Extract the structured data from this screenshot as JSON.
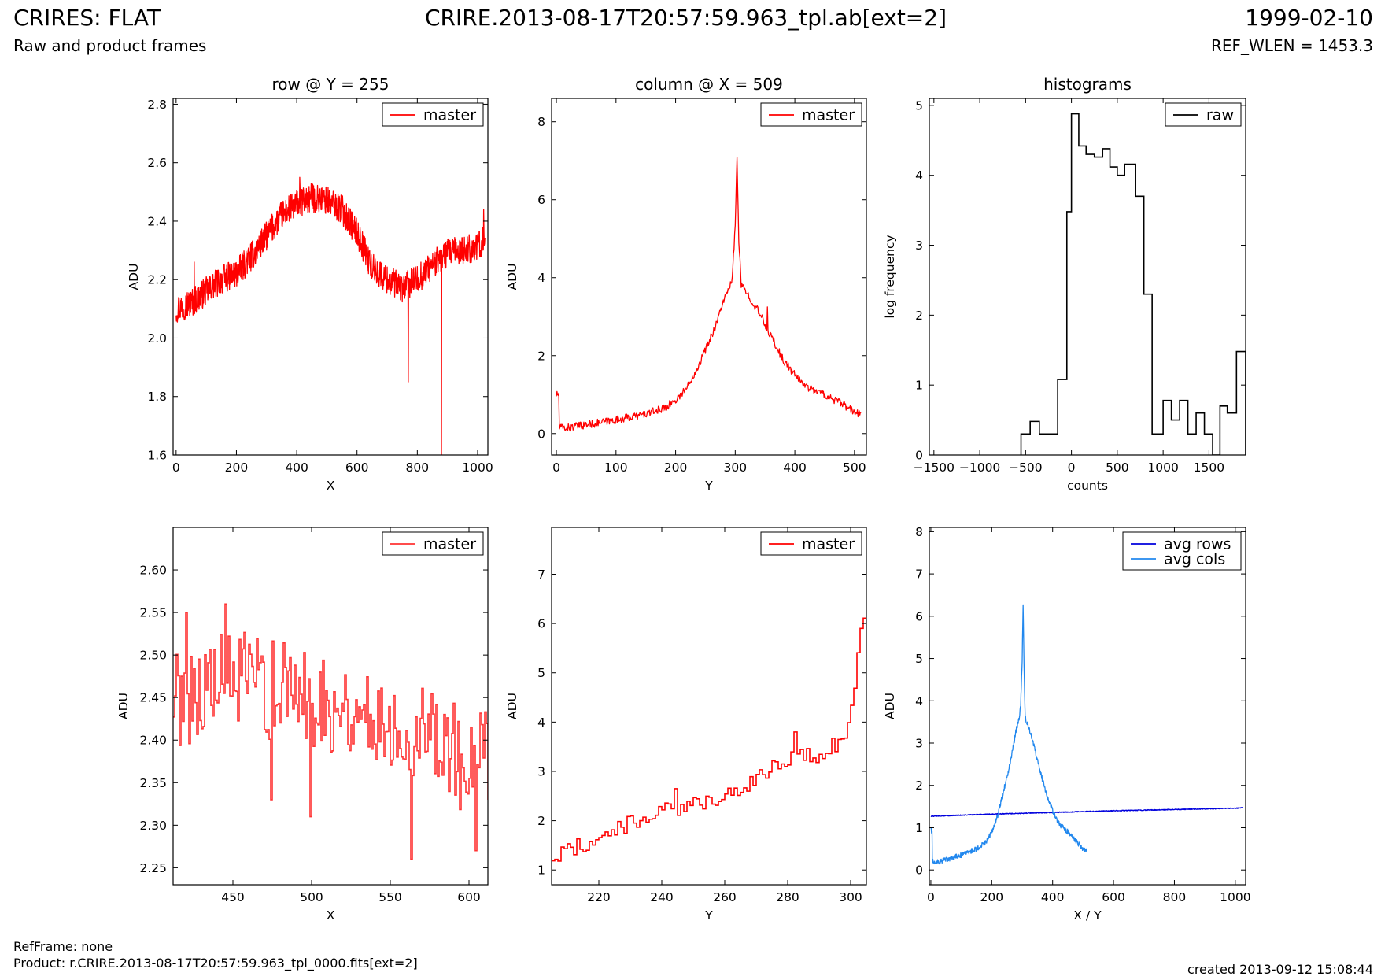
{
  "header": {
    "title_left": "CRIRES: FLAT",
    "subtitle_left": "Raw and product frames",
    "title_center": "CRIRE.2013-08-17T20:57:59.963_tpl.ab[ext=2]",
    "title_right": "1999-02-10",
    "subtitle_right": "REF_WLEN = 1453.3"
  },
  "footer": {
    "ref_frame": "RefFrame: none",
    "product": "Product: r.CRIRE.2013-08-17T20:57:59.963_tpl_0000.fits[ext=2]",
    "created": "created 2013-09-12 15:08:44"
  },
  "chart_data": [
    {
      "type": "line",
      "title": "row @ Y = 255",
      "xlabel": "X",
      "ylabel": "ADU",
      "xlim": [
        -10,
        1034
      ],
      "ylim": [
        1.6,
        2.82
      ],
      "xticks": [
        0,
        200,
        400,
        600,
        800,
        1000
      ],
      "yticks": [
        1.6,
        1.8,
        2.0,
        2.2,
        2.4,
        2.6,
        2.8
      ],
      "ytick_decimals": 1,
      "legend": "top-right",
      "series": [
        {
          "name": "master",
          "color": "#ff0000",
          "drawstyle": "line",
          "x": [
            0,
            50,
            100,
            150,
            200,
            250,
            300,
            350,
            400,
            450,
            500,
            550,
            600,
            650,
            700,
            750,
            800,
            850,
            900,
            950,
            1000,
            1024
          ],
          "values": [
            2.1,
            2.12,
            2.16,
            2.2,
            2.22,
            2.28,
            2.35,
            2.42,
            2.46,
            2.48,
            2.47,
            2.44,
            2.36,
            2.24,
            2.2,
            2.17,
            2.2,
            2.25,
            2.29,
            2.3,
            2.31,
            2.34
          ],
          "noise": 0.05,
          "spikes": [
            [
              60,
              2.26
            ],
            [
              410,
              2.55
            ],
            [
              770,
              1.85
            ],
            [
              880,
              1.58
            ],
            [
              1020,
              2.44
            ]
          ]
        }
      ]
    },
    {
      "type": "line",
      "title": "column @ X = 509",
      "xlabel": "Y",
      "ylabel": "ADU",
      "xlim": [
        -8,
        520
      ],
      "ylim": [
        -0.55,
        8.6
      ],
      "xticks": [
        0,
        100,
        200,
        300,
        400,
        500
      ],
      "yticks": [
        0,
        2,
        4,
        6,
        8
      ],
      "ytick_decimals": 0,
      "legend": "top-right",
      "series": [
        {
          "name": "master",
          "color": "#ff0000",
          "drawstyle": "line",
          "x": [
            0,
            4,
            5,
            20,
            50,
            100,
            150,
            180,
            200,
            220,
            240,
            260,
            270,
            280,
            290,
            295,
            300,
            303,
            306,
            310,
            320,
            340,
            360,
            380,
            400,
            420,
            450,
            480,
            500,
            511
          ],
          "values": [
            1.0,
            1.0,
            0.15,
            0.15,
            0.22,
            0.35,
            0.5,
            0.65,
            0.85,
            1.2,
            1.8,
            2.5,
            2.9,
            3.4,
            3.7,
            4.0,
            5.3,
            7.1,
            5.0,
            3.8,
            3.6,
            3.1,
            2.5,
            1.9,
            1.5,
            1.2,
            1.0,
            0.75,
            0.55,
            0.48
          ],
          "noise": 0.1,
          "spikes": [
            [
              354,
              3.25
            ]
          ]
        }
      ]
    },
    {
      "type": "line",
      "title": "histograms",
      "xlabel": "counts",
      "ylabel": "log frequency",
      "xlim": [
        -1550,
        1900
      ],
      "ylim": [
        0,
        5.1
      ],
      "xticks": [
        -1500,
        -1000,
        -500,
        0,
        500,
        1000,
        1500
      ],
      "yticks": [
        0,
        1,
        2,
        3,
        4,
        5
      ],
      "ytick_decimals": 0,
      "legend": "top-right",
      "series": [
        {
          "name": "raw",
          "color": "#000000",
          "drawstyle": "steps",
          "bin_edges": [
            -550,
            -450,
            -350,
            -250,
            -150,
            -50,
            0,
            80,
            160,
            250,
            340,
            420,
            500,
            580,
            700,
            790,
            880,
            1000,
            1090,
            1180,
            1270,
            1360,
            1450,
            1540,
            1620,
            1700,
            1800,
            1900
          ],
          "values": [
            0.3,
            0.48,
            0.3,
            0.3,
            1.08,
            3.48,
            4.88,
            4.42,
            4.3,
            4.26,
            4.38,
            4.12,
            4.0,
            4.16,
            3.7,
            2.3,
            0.3,
            0.78,
            0.5,
            0.78,
            0.3,
            0.6,
            0.3,
            0.0,
            0.7,
            0.6,
            1.48
          ]
        }
      ]
    },
    {
      "type": "line",
      "title": "",
      "xlabel": "X",
      "ylabel": "ADU",
      "xlim": [
        412,
        612
      ],
      "ylim": [
        2.23,
        2.65
      ],
      "xticks": [
        450,
        500,
        550,
        600
      ],
      "yticks": [
        2.25,
        2.3,
        2.35,
        2.4,
        2.45,
        2.5,
        2.55,
        2.6
      ],
      "ytick_decimals": 2,
      "legend": "top-right",
      "series": [
        {
          "name": "master",
          "color": "#ff3333",
          "drawstyle": "steps_noise",
          "x": [
            412,
            450,
            500,
            550,
            580,
            600,
            612
          ],
          "values": [
            2.45,
            2.47,
            2.45,
            2.42,
            2.41,
            2.36,
            2.38
          ],
          "noise": 0.06,
          "spikes": [
            [
              420,
              2.55
            ],
            [
              445,
              2.56
            ],
            [
              474,
              2.33
            ],
            [
              499,
              2.31
            ],
            [
              563,
              2.26
            ],
            [
              604,
              2.27
            ]
          ]
        }
      ]
    },
    {
      "type": "line",
      "title": "",
      "xlabel": "Y",
      "ylabel": "ADU",
      "xlim": [
        205,
        305
      ],
      "ylim": [
        0.7,
        7.95
      ],
      "xticks": [
        220,
        240,
        260,
        280,
        300
      ],
      "yticks": [
        1,
        2,
        3,
        4,
        5,
        6,
        7
      ],
      "ytick_decimals": 0,
      "legend": "top-right",
      "series": [
        {
          "name": "master",
          "color": "#ff0000",
          "drawstyle": "steps_noise",
          "x": [
            205,
            210,
            220,
            230,
            240,
            250,
            260,
            270,
            280,
            290,
            298,
            301,
            303,
            305
          ],
          "values": [
            1.25,
            1.4,
            1.65,
            1.95,
            2.2,
            2.3,
            2.55,
            2.85,
            3.3,
            3.3,
            3.7,
            4.8,
            5.8,
            6.4
          ],
          "noise": 0.18,
          "spikes": [
            [
              244,
              2.65
            ],
            [
              282,
              3.8
            ]
          ]
        }
      ]
    },
    {
      "type": "line",
      "title": "",
      "xlabel": "X / Y",
      "ylabel": "ADU",
      "xlim": [
        -5,
        1034
      ],
      "ylim": [
        -0.35,
        8.1
      ],
      "xticks": [
        0,
        200,
        400,
        600,
        800,
        1000
      ],
      "yticks": [
        0,
        1,
        2,
        3,
        4,
        5,
        6,
        7,
        8
      ],
      "ytick_decimals": 0,
      "legend": "top-right",
      "series": [
        {
          "name": "avg rows",
          "color": "#0000dd",
          "drawstyle": "line",
          "x": [
            0,
            200,
            400,
            600,
            800,
            1000,
            1024
          ],
          "values": [
            1.27,
            1.32,
            1.36,
            1.4,
            1.43,
            1.46,
            1.47
          ],
          "noise": 0.01,
          "spikes": []
        },
        {
          "name": "avg cols",
          "color": "#2288ee",
          "drawstyle": "line",
          "x": [
            0,
            4,
            5,
            20,
            50,
            100,
            150,
            180,
            200,
            220,
            240,
            260,
            270,
            280,
            290,
            295,
            300,
            303,
            306,
            310,
            320,
            340,
            360,
            380,
            400,
            420,
            450,
            480,
            500,
            511
          ],
          "values": [
            1.0,
            0.85,
            0.2,
            0.18,
            0.24,
            0.35,
            0.5,
            0.65,
            0.9,
            1.3,
            1.9,
            2.5,
            2.9,
            3.3,
            3.6,
            3.9,
            5.0,
            6.25,
            4.8,
            3.6,
            3.4,
            2.9,
            2.3,
            1.8,
            1.4,
            1.1,
            0.9,
            0.65,
            0.5,
            0.45
          ],
          "noise": 0.06,
          "spikes": []
        }
      ]
    }
  ]
}
